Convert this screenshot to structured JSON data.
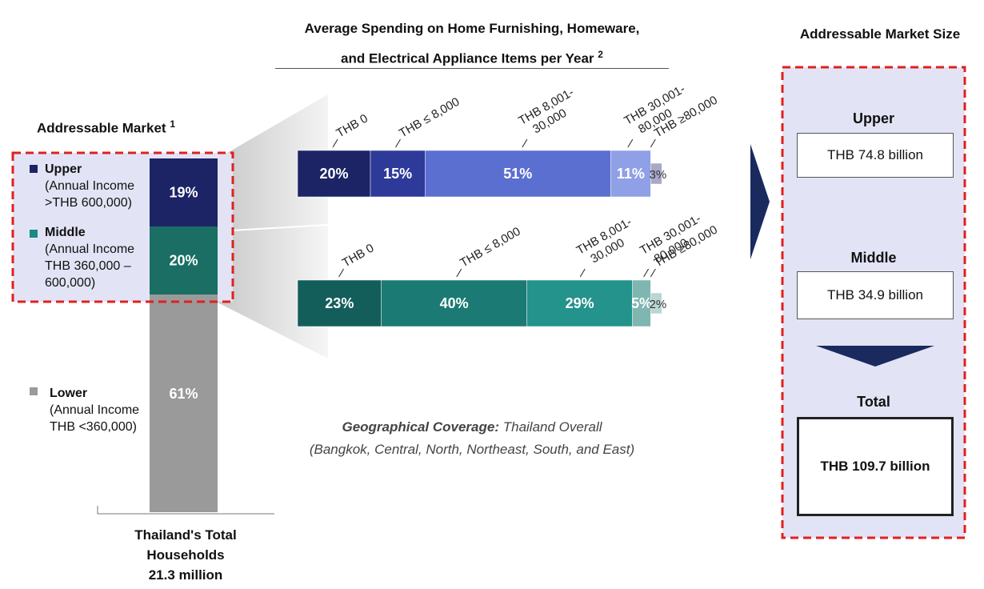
{
  "chart_title_line1": "Average Spending on Home Furnishing, Homeware,",
  "chart_title_line2": "and Electrical Appliance Items per Year",
  "chart_title_note": "2",
  "left_title": "Addressable Market",
  "left_title_note": "1",
  "right_title": "Addressable Market Size",
  "geo_label": "Geographical Coverage:",
  "geo_value": "Thailand Overall",
  "geo_detail": "(Bangkok, Central, North, Northeast, South, and East)",
  "footer_line1": "Thailand's Total",
  "footer_line2": "Households",
  "footer_line3": "21.3 million",
  "legend": {
    "upper": {
      "name": "Upper",
      "detail1": "(Annual Income",
      "detail2": ">THB 600,000)"
    },
    "middle": {
      "name": "Middle",
      "detail1": "(Annual Income",
      "detail2": "THB 360,000 –",
      "detail3": "600,000)"
    },
    "lower": {
      "name": "Lower",
      "detail1": "(Annual Income",
      "detail2": "THB <360,000)"
    }
  },
  "market_size": {
    "upper_label": "Upper",
    "upper_value": "THB 74.8 billion",
    "middle_label": "Middle",
    "middle_value": "THB 34.9 billion",
    "total_label": "Total",
    "total_value": "THB 109.7 billion"
  },
  "colors": {
    "upper_seg": [
      "#1c2466",
      "#2d3a99",
      "#5b6fd1",
      "#8fa0e6",
      "#a8a8c8"
    ],
    "middle_seg": [
      "#135e5a",
      "#1b7a74",
      "#23938b",
      "#7fb6b1",
      "#b9d6d2"
    ],
    "upper_household": "#1c2466",
    "middle_household": "#1a6e64",
    "lower_household": "#9a9a9a",
    "highlight_dash": "#e02020",
    "panel_bg": "#e2e4f5",
    "arrow": "#1a2a5e"
  },
  "chart_data": [
    {
      "type": "bar",
      "subtype": "stacked-100-vertical",
      "title": "Thailand's Total Households 21.3 million",
      "categories": [
        "Thailand's Total Households"
      ],
      "series": [
        {
          "name": "Upper",
          "values": [
            19
          ]
        },
        {
          "name": "Middle",
          "values": [
            20
          ]
        },
        {
          "name": "Lower",
          "values": [
            61
          ]
        }
      ],
      "value_labels": [
        "19%",
        "20%",
        "61%"
      ]
    },
    {
      "type": "bar",
      "subtype": "stacked-100-horizontal",
      "title": "Average Spending on Home Furnishing, Homeware, and Electrical Appliance Items per Year",
      "categories": [
        "Upper",
        "Middle"
      ],
      "segment_labels": [
        "THB 0",
        "THB ≤ 8,000",
        "THB 8,001-30,000",
        "THB 30,001-80,000",
        "THB ≥80,000"
      ],
      "series_values": {
        "Upper": [
          20,
          15,
          51,
          11,
          3
        ],
        "Middle": [
          23,
          40,
          29,
          5,
          2
        ]
      },
      "value_labels": {
        "Upper": [
          "20%",
          "15%",
          "51%",
          "11%",
          "3%"
        ],
        "Middle": [
          "23%",
          "40%",
          "29%",
          "5%",
          "2%"
        ]
      }
    }
  ]
}
